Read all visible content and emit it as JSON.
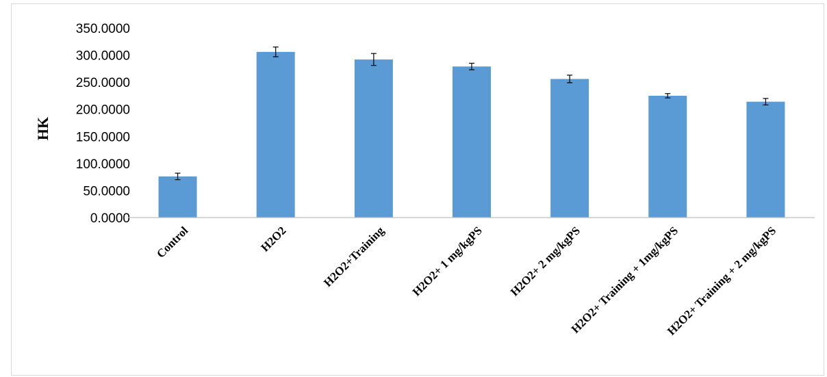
{
  "chart_data": {
    "type": "bar",
    "title": "",
    "xlabel": "",
    "ylabel": "HK",
    "ylim": [
      0,
      350
    ],
    "ytick_step": 50,
    "ytick_labels": [
      "0.0000",
      "50.0000",
      "100.0000",
      "150.0000",
      "200.0000",
      "250.0000",
      "300.0000",
      "350.0000"
    ],
    "categories": [
      "Control",
      "H2O2",
      "H2O2+Training",
      "H2O2+ 1 mg/kgPS",
      "H2O2+ 2 mg/kgPS",
      "H2O2+ Training + 1mg/kgPS",
      "H2O2+ Training +  2 mg/kgPS"
    ],
    "values": [
      76,
      306,
      292,
      279,
      256,
      225,
      214
    ],
    "errors": [
      6,
      9,
      11,
      6,
      7,
      4,
      6
    ],
    "grid": false,
    "legend": "none",
    "bar_color": "#5b9bd5",
    "error_color": "#000000"
  }
}
